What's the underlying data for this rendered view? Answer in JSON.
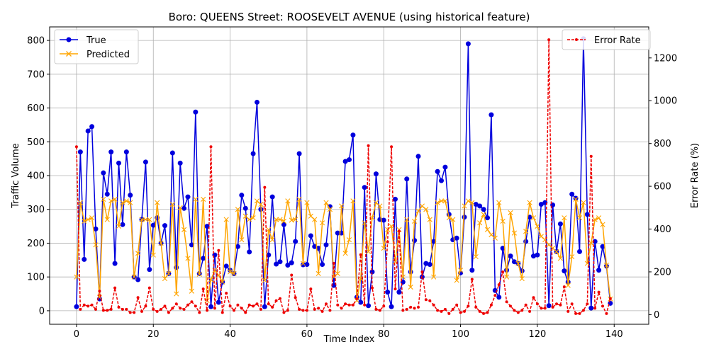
{
  "chart_data": {
    "type": "line",
    "title": "Boro: QUEENS Street: ROOSEVELT AVENUE (using historical feature)",
    "xlabel": "Time Index",
    "ylabel": "Traffic Volume",
    "y2label": "Error Rate (%)",
    "xlim": [
      -7,
      149
    ],
    "ylim": [
      -40,
      840
    ],
    "y2lim": [
      -45,
      1345
    ],
    "x_ticks": [
      0,
      20,
      40,
      60,
      80,
      100,
      120,
      140
    ],
    "y_ticks": [
      0,
      100,
      200,
      300,
      400,
      500,
      600,
      700,
      800
    ],
    "y2_ticks": [
      0,
      200,
      400,
      600,
      800,
      1000,
      1200
    ],
    "grid": true,
    "legend_left": {
      "position": "upper-left",
      "entries": [
        "True",
        "Predicted"
      ]
    },
    "legend_right": {
      "position": "upper-right",
      "entries": [
        "Error Rate"
      ]
    },
    "colors": {
      "true": "#0000dd",
      "predicted": "#ffa500",
      "error": "#ee0000"
    },
    "series": [
      {
        "name": "True",
        "axis": "left",
        "values": [
          12,
          470,
          152,
          532,
          545,
          242,
          35,
          408,
          345,
          470,
          140,
          437,
          255,
          470,
          342,
          100,
          92,
          270,
          440,
          122,
          253,
          275,
          200,
          252,
          110,
          467,
          128,
          437,
          303,
          337,
          195,
          588,
          110,
          155,
          250,
          12,
          165,
          25,
          85,
          132,
          120,
          110,
          190,
          342,
          303,
          174,
          465,
          617,
          300,
          12,
          165,
          337,
          138,
          145,
          255,
          135,
          142,
          205,
          465,
          136,
          137,
          222,
          190,
          185,
          137,
          195,
          308,
          75,
          230,
          230,
          442,
          447,
          520,
          40,
          25,
          365,
          15,
          115,
          405,
          270,
          268,
          55,
          12,
          330,
          55,
          85,
          390,
          115,
          208,
          457,
          100,
          140,
          137,
          205,
          412,
          385,
          425,
          285,
          210,
          215,
          112,
          277,
          790,
          120,
          315,
          310,
          300,
          275,
          580,
          60,
          40,
          185,
          120,
          162,
          145,
          140,
          118,
          205,
          277,
          162,
          165,
          315,
          320,
          15,
          313,
          175,
          257,
          118,
          85,
          345,
          333,
          175,
          805,
          285,
          8,
          205,
          120,
          190,
          132,
          22
        ]
      },
      {
        "name": "Predicted",
        "axis": "left",
        "values": [
          100,
          320,
          265,
          270,
          275,
          195,
          40,
          330,
          270,
          325,
          330,
          250,
          320,
          325,
          320,
          100,
          170,
          270,
          270,
          270,
          165,
          320,
          200,
          95,
          110,
          315,
          50,
          305,
          240,
          155,
          58,
          330,
          108,
          330,
          30,
          92,
          120,
          105,
          85,
          270,
          115,
          110,
          300,
          210,
          280,
          270,
          275,
          325,
          315,
          90,
          240,
          210,
          270,
          270,
          265,
          325,
          268,
          270,
          330,
          140,
          320,
          280,
          270,
          110,
          260,
          320,
          300,
          100,
          110,
          310,
          170,
          210,
          325,
          30,
          95,
          260,
          175,
          275,
          320,
          310,
          185,
          240,
          250,
          145,
          240,
          100,
          270,
          70,
          265,
          295,
          310,
          300,
          270,
          100,
          320,
          325,
          325,
          275,
          270,
          90,
          120,
          310,
          325,
          320,
          160,
          260,
          285,
          240,
          225,
          215,
          320,
          265,
          100,
          290,
          230,
          140,
          95,
          235,
          320,
          275,
          250,
          220,
          210,
          195,
          185,
          175,
          155,
          275,
          75,
          160,
          330,
          275,
          320,
          140,
          200,
          270,
          275,
          255,
          135,
          35
        ]
      },
      {
        "name": "Error Rate",
        "axis": "right",
        "values": [
          785,
          25,
          45,
          40,
          45,
          25,
          110,
          20,
          20,
          25,
          125,
          35,
          25,
          25,
          10,
          10,
          80,
          15,
          40,
          125,
          25,
          15,
          25,
          40,
          10,
          30,
          50,
          30,
          25,
          45,
          60,
          40,
          10,
          120,
          20,
          785,
          30,
          300,
          10,
          100,
          40,
          20,
          45,
          30,
          10,
          45,
          40,
          50,
          25,
          595,
          50,
          35,
          65,
          75,
          10,
          20,
          185,
          80,
          25,
          20,
          20,
          120,
          25,
          30,
          15,
          50,
          20,
          240,
          45,
          30,
          50,
          45,
          45,
          75,
          280,
          45,
          790,
          125,
          25,
          20,
          40,
          340,
          785,
          120,
          390,
          20,
          25,
          35,
          30,
          35,
          200,
          70,
          65,
          45,
          20,
          15,
          25,
          5,
          25,
          45,
          10,
          15,
          40,
          165,
          35,
          15,
          5,
          10,
          45,
          90,
          140,
          200,
          60,
          40,
          20,
          10,
          20,
          45,
          15,
          80,
          50,
          30,
          30,
          1285,
          35,
          50,
          45,
          130,
          15,
          50,
          5,
          5,
          20,
          50,
          740,
          30,
          105,
          40,
          5,
          75
        ]
      }
    ]
  }
}
